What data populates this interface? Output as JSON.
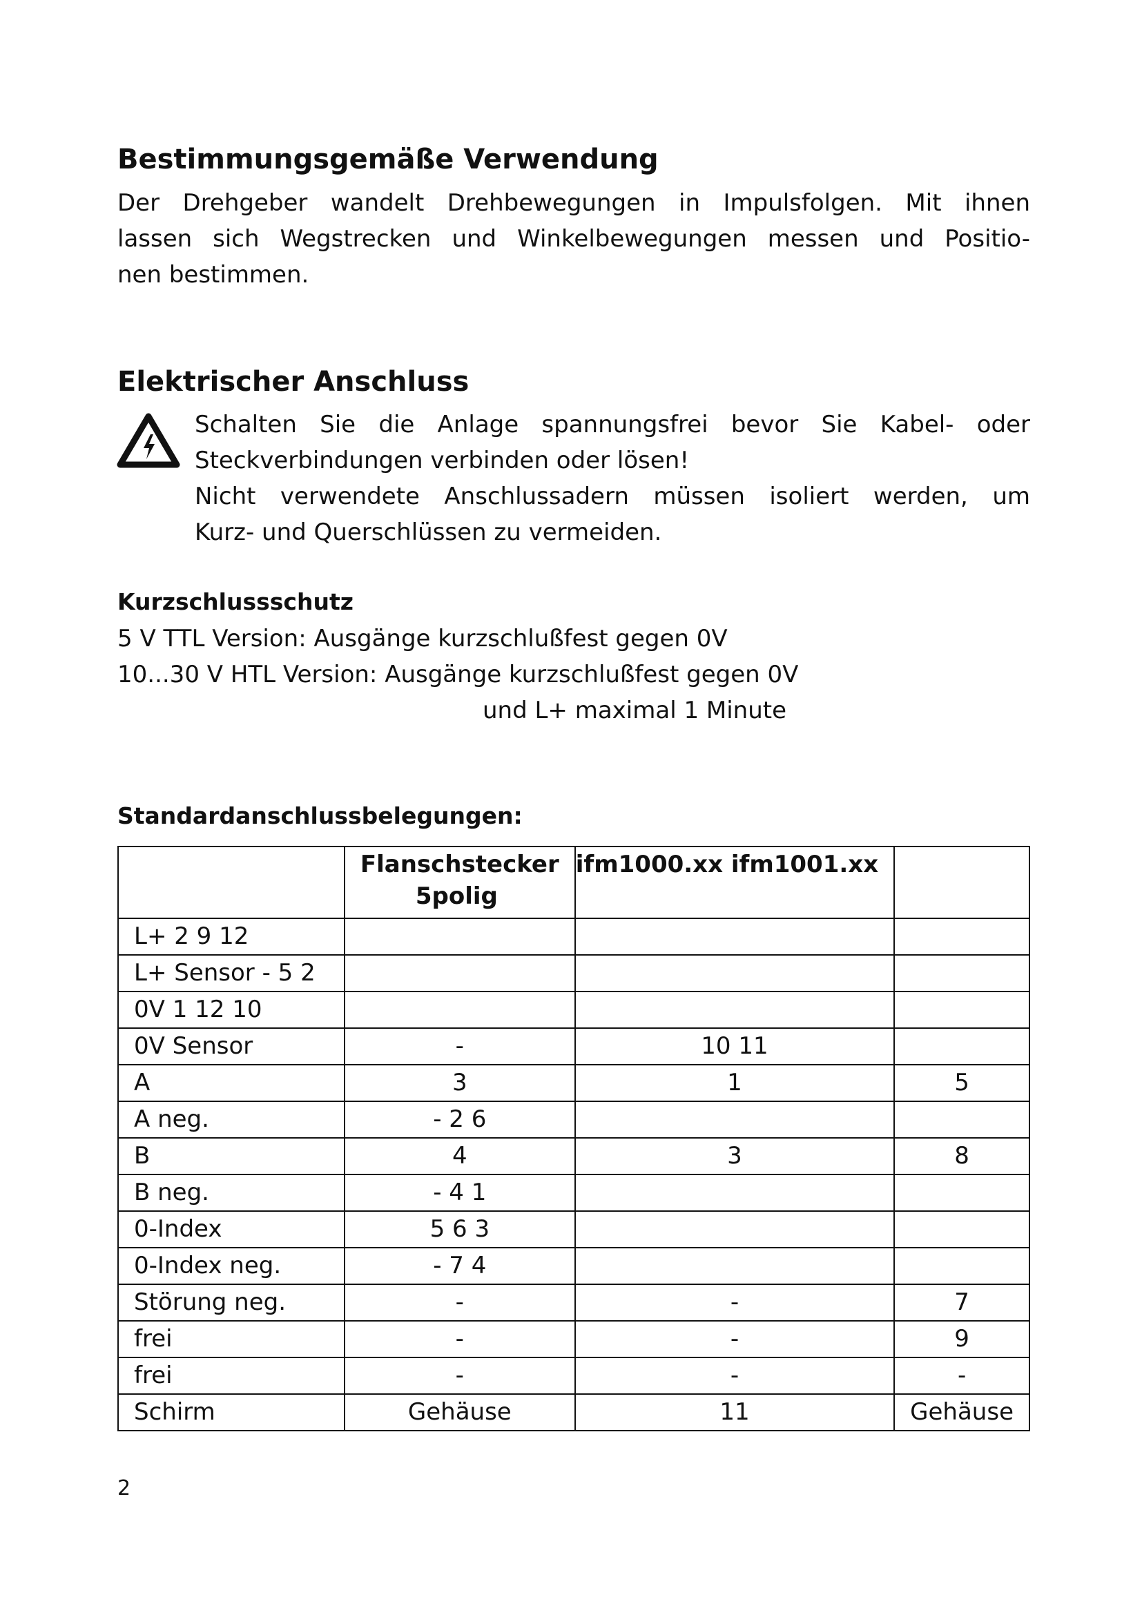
{
  "section1": {
    "title": "Bestimmungsgemäße Verwendung",
    "lines": [
      "Der Drehgeber wandelt Drehbewegungen in Impulsfolgen. Mit ihnen",
      "lassen sich Wegstrecken und Winkelbewegungen messen und Positio-",
      "nen bestimmen."
    ]
  },
  "section2": {
    "title": "Elektrischer Anschluss",
    "warning_icon": "high-voltage-warning-icon",
    "lines": [
      "Schalten Sie die Anlage spannungsfrei bevor Sie Kabel- oder",
      "Steckverbindungen verbinden oder lösen!",
      "Nicht verwendete Anschlussadern müssen isoliert werden, um",
      "Kurz- und Querschlüssen zu vermeiden."
    ]
  },
  "section3": {
    "title": "Kurzschlussschutz",
    "lines": [
      "5 V TTL Version: Ausgänge kurzschlußfest gegen 0V",
      "10...30 V HTL Version: Ausgänge kurzschlußfest gegen 0V",
      "und L+ maximal 1 Minute"
    ]
  },
  "section4": {
    "title": "Standardanschlussbelegungen:",
    "table": {
      "header": [
        "",
        "Flanschstecker",
        "5polig",
        "ifm1000.xx ifm1001.xx"
      ],
      "rows": [
        [
          "L+ 2 9 12",
          "",
          "",
          ""
        ],
        [
          "L+ Sensor - 5 2",
          "",
          "",
          ""
        ],
        [
          "0V 1 12 10",
          "",
          "",
          ""
        ],
        [
          "0V Sensor",
          "-",
          "10 11",
          ""
        ],
        [
          "A",
          "3",
          "1",
          "5"
        ],
        [
          "A neg.",
          "- 2 6",
          "",
          ""
        ],
        [
          "B",
          "4",
          "3",
          "8"
        ],
        [
          "B neg.",
          "- 4 1",
          "",
          ""
        ],
        [
          "0-Index",
          "5 6 3",
          "",
          ""
        ],
        [
          "0-Index neg.",
          "- 7 4",
          "",
          ""
        ],
        [
          "Störung neg.",
          "-",
          "-",
          "7"
        ],
        [
          "frei",
          "-",
          "-",
          "9"
        ],
        [
          "frei",
          "-",
          "-",
          "-"
        ],
        [
          "Schirm",
          "Gehäuse",
          "11",
          "Gehäuse"
        ]
      ]
    }
  },
  "page_number": "2"
}
